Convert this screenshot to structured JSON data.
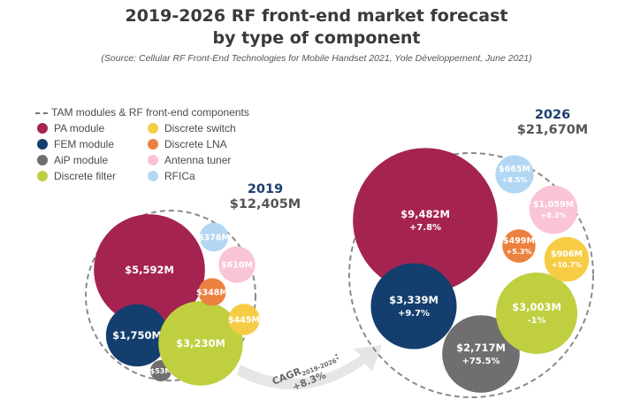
{
  "chart_data": {
    "type": "bubble",
    "title_line1": "2019-2026 RF front-end market forecast",
    "title_line2": "by type of component",
    "source": "(Source: Cellular RF Front-End Technologies for Mobile Handset 2021, Yole Développement, June 2021)",
    "legend": {
      "tam_label": "TAM modules & RF front-end components",
      "items": [
        {
          "name": "PA module",
          "color": "#a52350"
        },
        {
          "name": "FEM module",
          "color": "#133e6e"
        },
        {
          "name": "AiP module",
          "color": "#6f6f6f"
        },
        {
          "name": "Discrete filter",
          "color": "#bfcf40"
        },
        {
          "name": "Discrete switch",
          "color": "#f7cc45"
        },
        {
          "name": "Discrete LNA",
          "color": "#ec8040"
        },
        {
          "name": "Antenna tuner",
          "color": "#f9c4d6"
        },
        {
          "name": "RFICa",
          "color": "#b3d7f3"
        }
      ]
    },
    "years": [
      {
        "year": "2019",
        "total": "$12,405M",
        "components": [
          {
            "name": "PA module",
            "value": 5592,
            "label": "$5,592M"
          },
          {
            "name": "FEM module",
            "value": 1750,
            "label": "$1,750M"
          },
          {
            "name": "AiP module",
            "value": 53,
            "label": "$53M"
          },
          {
            "name": "Discrete filter",
            "value": 3230,
            "label": "$3,230M"
          },
          {
            "name": "Discrete switch",
            "value": 445,
            "label": "$445M"
          },
          {
            "name": "Discrete LNA",
            "value": 348,
            "label": "$348M"
          },
          {
            "name": "Antenna tuner",
            "value": 610,
            "label": "$610M"
          },
          {
            "name": "RFICa",
            "value": 376,
            "label": "$376M"
          }
        ]
      },
      {
        "year": "2026",
        "total": "$21,670M",
        "components": [
          {
            "name": "PA module",
            "value": 9482,
            "label": "$9,482M",
            "cagr": "+7.8%"
          },
          {
            "name": "FEM module",
            "value": 3339,
            "label": "$3,339M",
            "cagr": "+9.7%"
          },
          {
            "name": "AiP module",
            "value": 2717,
            "label": "$2,717M",
            "cagr": "+75.5%"
          },
          {
            "name": "Discrete filter",
            "value": 3003,
            "label": "$3,003M",
            "cagr": "-1%"
          },
          {
            "name": "Discrete switch",
            "value": 906,
            "label": "$906M",
            "cagr": "+10.7%"
          },
          {
            "name": "Discrete LNA",
            "value": 499,
            "label": "$499M",
            "cagr": "+5.3%"
          },
          {
            "name": "Antenna tuner",
            "value": 1059,
            "label": "$1,059M",
            "cagr": "+8.2%"
          },
          {
            "name": "RFICa",
            "value": 665,
            "label": "$665M",
            "cagr": "+8.5%"
          }
        ]
      }
    ],
    "cagr": {
      "prefix": "CAGR",
      "period": "2019-2026",
      "suffix": ":",
      "value": "+8.3%"
    }
  }
}
